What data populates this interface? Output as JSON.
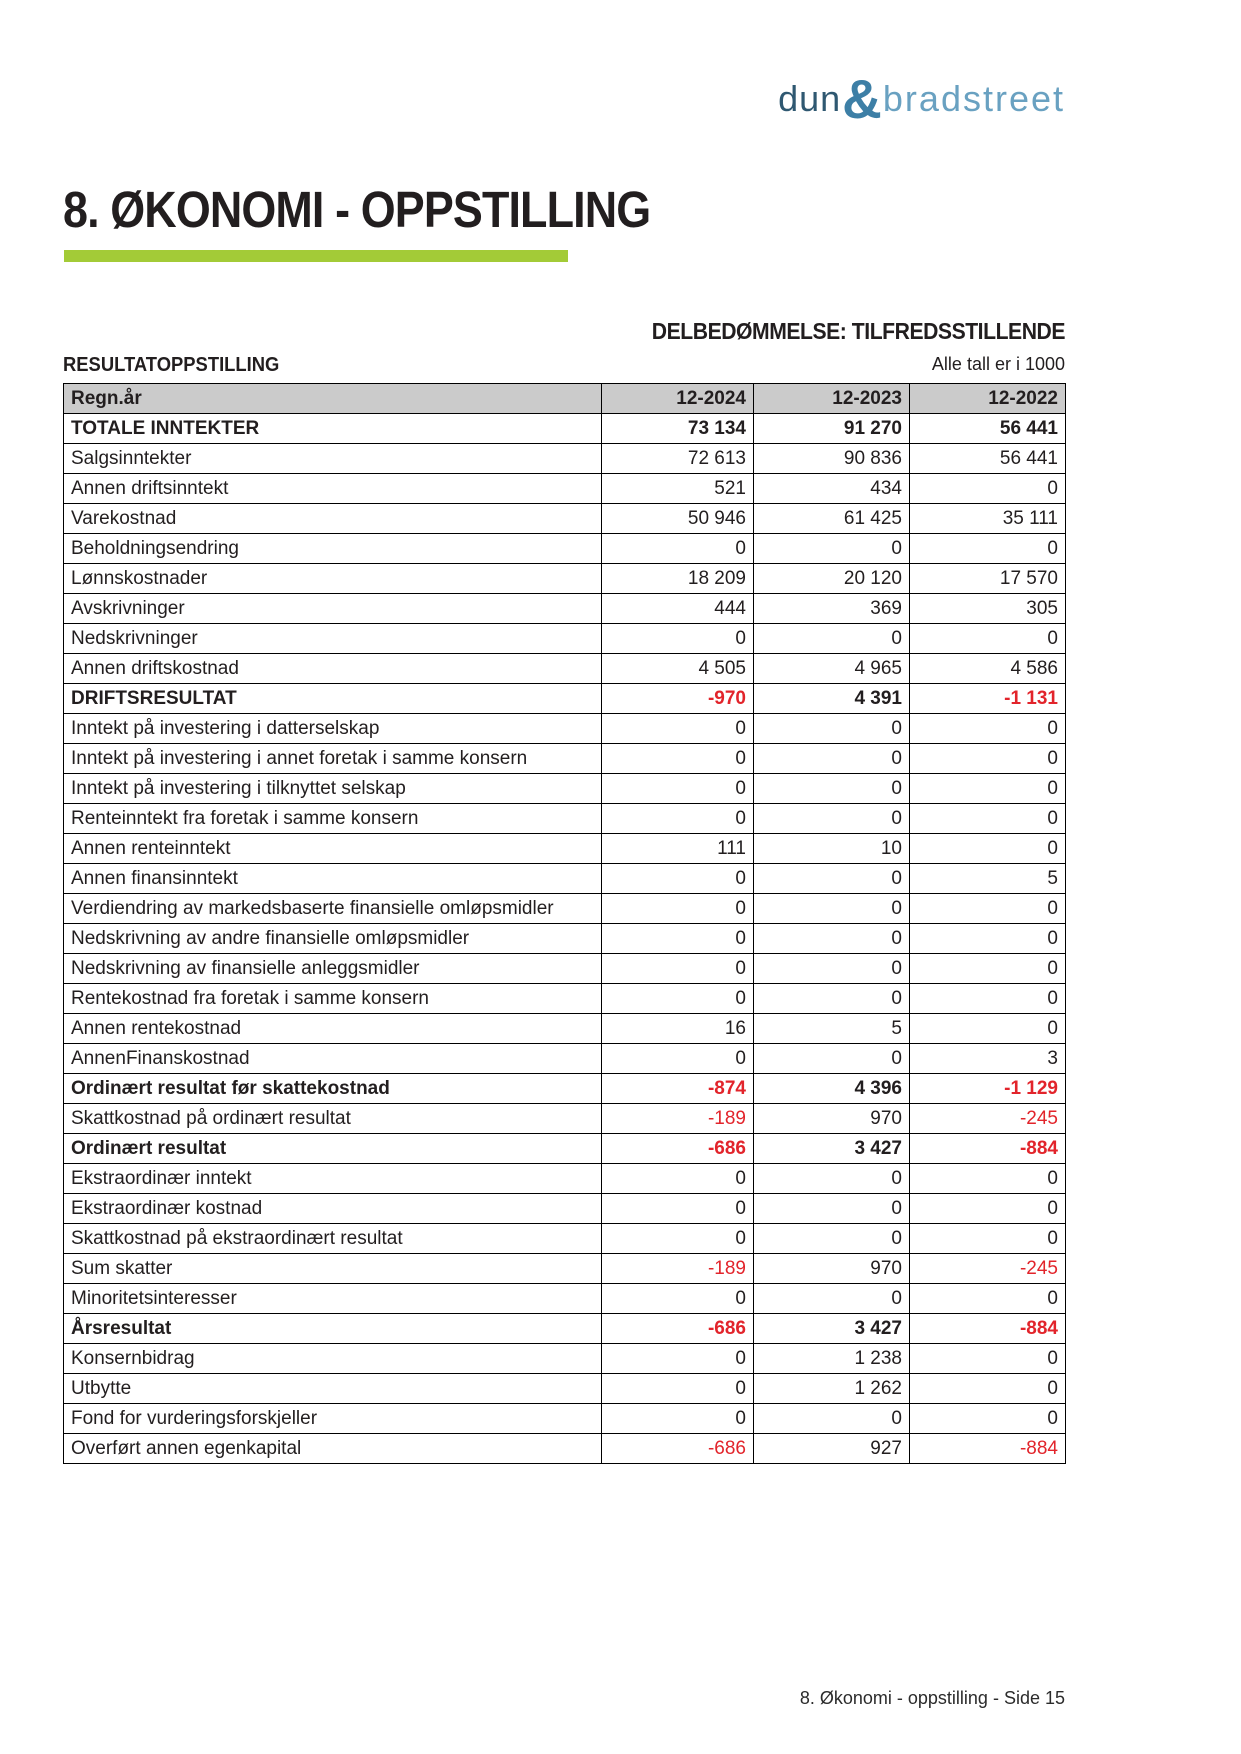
{
  "logo": {
    "part1": "dun",
    "amp": "&",
    "part2": "bradstreet"
  },
  "page": {
    "title": "8. ØKONOMI - OPPSTILLING",
    "assessment": "DELBEDØMMELSE: TILFREDSSTILLENDE",
    "table_title": "RESULTATOPPSTILLING",
    "units_note": "Alle tall er i 1000",
    "footer": "8. Økonomi - oppstilling - Side 15"
  },
  "colors": {
    "accent_green": "#a3cb37",
    "negative_red": "#e2242b",
    "table_header_gray": "#cbcbcb",
    "logo_dark_blue": "#2f5871",
    "logo_light_blue": "#69a1c1",
    "text_black": "#221e1f"
  },
  "table": {
    "header": [
      "Regn.år",
      "12-2024",
      "12-2023",
      "12-2022"
    ],
    "rows": [
      {
        "label": "TOTALE INNTEKTER",
        "values": [
          "73 134",
          "91 270",
          "56 441"
        ],
        "bold": true
      },
      {
        "label": "Salgsinntekter",
        "values": [
          "72 613",
          "90 836",
          "56 441"
        ],
        "bold": false
      },
      {
        "label": "Annen driftsinntekt",
        "values": [
          "521",
          "434",
          "0"
        ],
        "bold": false
      },
      {
        "label": "Varekostnad",
        "values": [
          "50 946",
          "61 425",
          "35 111"
        ],
        "bold": false
      },
      {
        "label": "Beholdningsendring",
        "values": [
          "0",
          "0",
          "0"
        ],
        "bold": false
      },
      {
        "label": "Lønnskostnader",
        "values": [
          "18 209",
          "20 120",
          "17 570"
        ],
        "bold": false
      },
      {
        "label": "Avskrivninger",
        "values": [
          "444",
          "369",
          "305"
        ],
        "bold": false
      },
      {
        "label": "Nedskrivninger",
        "values": [
          "0",
          "0",
          "0"
        ],
        "bold": false
      },
      {
        "label": "Annen driftskostnad",
        "values": [
          "4 505",
          "4 965",
          "4 586"
        ],
        "bold": false
      },
      {
        "label": "DRIFTSRESULTAT",
        "values": [
          "-970",
          "4 391",
          "-1 131"
        ],
        "bold": true
      },
      {
        "label": "Inntekt på investering i datterselskap",
        "values": [
          "0",
          "0",
          "0"
        ],
        "bold": false
      },
      {
        "label": "Inntekt på investering i annet foretak i samme konsern",
        "values": [
          "0",
          "0",
          "0"
        ],
        "bold": false
      },
      {
        "label": "Inntekt på investering i tilknyttet selskap",
        "values": [
          "0",
          "0",
          "0"
        ],
        "bold": false
      },
      {
        "label": "Renteinntekt fra foretak i samme konsern",
        "values": [
          "0",
          "0",
          "0"
        ],
        "bold": false
      },
      {
        "label": "Annen renteinntekt",
        "values": [
          "111",
          "10",
          "0"
        ],
        "bold": false
      },
      {
        "label": "Annen finansinntekt",
        "values": [
          "0",
          "0",
          "5"
        ],
        "bold": false
      },
      {
        "label": "Verdiendring av markedsbaserte finansielle omløpsmidler",
        "values": [
          "0",
          "0",
          "0"
        ],
        "bold": false
      },
      {
        "label": "Nedskrivning av andre finansielle omløpsmidler",
        "values": [
          "0",
          "0",
          "0"
        ],
        "bold": false
      },
      {
        "label": "Nedskrivning av finansielle anleggsmidler",
        "values": [
          "0",
          "0",
          "0"
        ],
        "bold": false
      },
      {
        "label": "Rentekostnad fra foretak i samme konsern",
        "values": [
          "0",
          "0",
          "0"
        ],
        "bold": false
      },
      {
        "label": "Annen rentekostnad",
        "values": [
          "16",
          "5",
          "0"
        ],
        "bold": false
      },
      {
        "label": "AnnenFinanskostnad",
        "values": [
          "0",
          "0",
          "3"
        ],
        "bold": false
      },
      {
        "label": "Ordinært resultat før skattekostnad",
        "values": [
          "-874",
          "4 396",
          "-1 129"
        ],
        "bold": true
      },
      {
        "label": "Skattkostnad på ordinært resultat",
        "values": [
          "-189",
          "970",
          "-245"
        ],
        "bold": false
      },
      {
        "label": "Ordinært resultat",
        "values": [
          "-686",
          "3 427",
          "-884"
        ],
        "bold": true
      },
      {
        "label": "Ekstraordinær inntekt",
        "values": [
          "0",
          "0",
          "0"
        ],
        "bold": false
      },
      {
        "label": "Ekstraordinær kostnad",
        "values": [
          "0",
          "0",
          "0"
        ],
        "bold": false
      },
      {
        "label": "Skattkostnad på ekstraordinært resultat",
        "values": [
          "0",
          "0",
          "0"
        ],
        "bold": false
      },
      {
        "label": "Sum skatter",
        "values": [
          "-189",
          "970",
          "-245"
        ],
        "bold": false
      },
      {
        "label": "Minoritetsinteresser",
        "values": [
          "0",
          "0",
          "0"
        ],
        "bold": false
      },
      {
        "label": "Årsresultat",
        "values": [
          "-686",
          "3 427",
          "-884"
        ],
        "bold": true
      },
      {
        "label": "Konsernbidrag",
        "values": [
          "0",
          "1 238",
          "0"
        ],
        "bold": false
      },
      {
        "label": "Utbytte",
        "values": [
          "0",
          "1 262",
          "0"
        ],
        "bold": false
      },
      {
        "label": "Fond for vurderingsforskjeller",
        "values": [
          "0",
          "0",
          "0"
        ],
        "bold": false
      },
      {
        "label": "Overført annen egenkapital",
        "values": [
          "-686",
          "927",
          "-884"
        ],
        "bold": false
      }
    ]
  }
}
